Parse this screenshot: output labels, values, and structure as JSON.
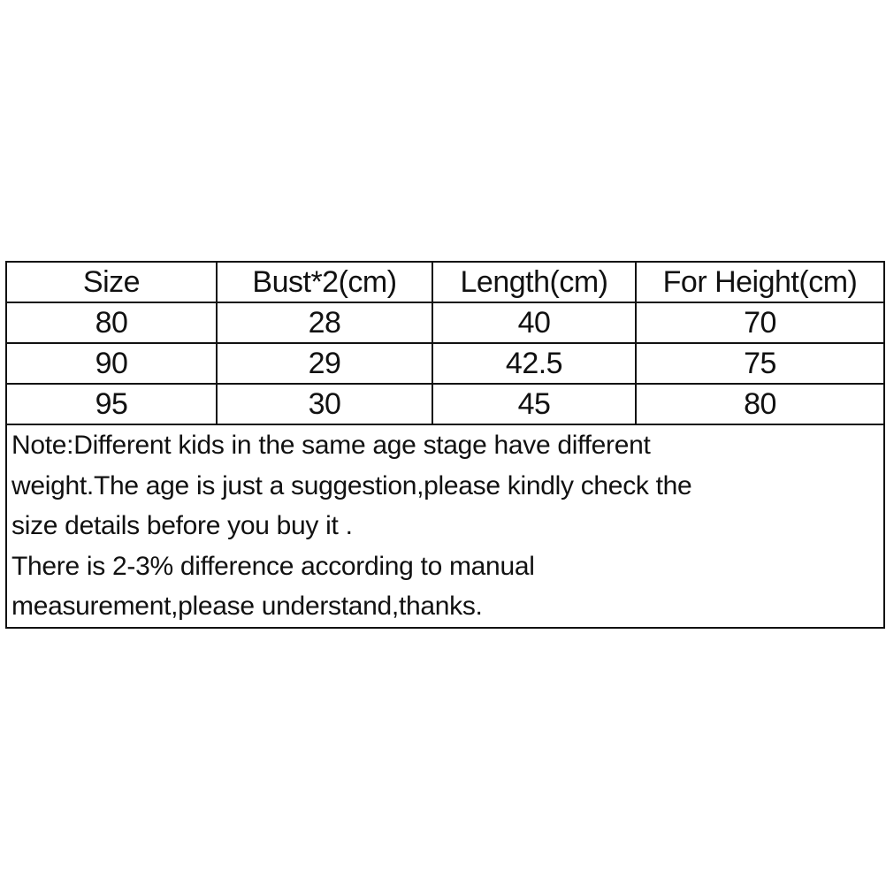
{
  "table": {
    "headers": [
      "Size",
      "Bust*2(cm)",
      "Length(cm)",
      "For Height(cm)"
    ],
    "rows": [
      [
        "80",
        "28",
        "40",
        "70"
      ],
      [
        "90",
        "29",
        "42.5",
        "75"
      ],
      [
        "95",
        "30",
        "45",
        "80"
      ]
    ],
    "note_lines": [
      "Note:Different kids in the same age stage have different",
      "weight.The age is just a suggestion,please kindly check the",
      "size details before you buy it .",
      "There is 2-3% difference according to manual",
      "measurement,please understand,thanks."
    ]
  }
}
